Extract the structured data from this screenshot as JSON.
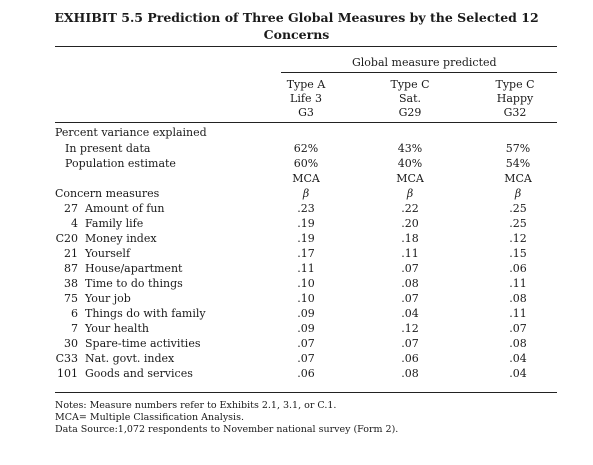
{
  "title_line1": "EXHIBIT 5.5 Prediction of Three Global Measures by the Selected 12",
  "title_line2": "Concerns",
  "group_header": "Global measure predicted",
  "columns": [
    {
      "type": "Type A",
      "name": "Life 3",
      "code": "G3"
    },
    {
      "type": "Type C",
      "name": "Sat.",
      "code": "G29"
    },
    {
      "type": "Type C",
      "name": "Happy",
      "code": "G32"
    }
  ],
  "variance_label": "Percent variance explained",
  "variance_rows": [
    {
      "label": "In present data",
      "values": [
        "62%",
        "43%",
        "57%"
      ]
    },
    {
      "label": "Population estimate",
      "values": [
        "60%",
        "40%",
        "54%"
      ]
    }
  ],
  "method_row": [
    "MCA",
    "MCA",
    "MCA"
  ],
  "concerns_label": "Concern measures",
  "beta_symbol": "β",
  "concern_rows": [
    {
      "num": "27",
      "label": "Amount of fun",
      "values": [
        ".23",
        ".22",
        ".25"
      ]
    },
    {
      "num": "4",
      "label": "Family life",
      "values": [
        ".19",
        ".20",
        ".25"
      ]
    },
    {
      "num": "C20",
      "label": "Money index",
      "values": [
        ".19",
        ".18",
        ".12"
      ]
    },
    {
      "num": "21",
      "label": "Yourself",
      "values": [
        ".17",
        ".11",
        ".15"
      ]
    },
    {
      "num": "87",
      "label": "House/apartment",
      "values": [
        ".11",
        ".07",
        ".06"
      ]
    },
    {
      "num": "38",
      "label": "Time to do things",
      "values": [
        ".10",
        ".08",
        ".11"
      ]
    },
    {
      "num": "75",
      "label": "Your job",
      "values": [
        ".10",
        ".07",
        ".08"
      ]
    },
    {
      "num": "6",
      "label": "Things do with family",
      "values": [
        ".09",
        ".04",
        ".11"
      ]
    },
    {
      "num": "7",
      "label": "Your health",
      "values": [
        ".09",
        ".12",
        ".07"
      ]
    },
    {
      "num": "30",
      "label": "Spare-time activities",
      "values": [
        ".07",
        ".07",
        ".08"
      ]
    },
    {
      "num": "C33",
      "label": "Nat. govt. index",
      "values": [
        ".07",
        ".06",
        ".04"
      ]
    },
    {
      "num": "101",
      "label": "Goods and services",
      "values": [
        ".06",
        ".08",
        ".04"
      ]
    }
  ],
  "notes": [
    "Notes: Measure numbers refer to Exhibits 2.1, 3.1, or C.1.",
    "MCA= Multiple Classification Analysis.",
    "Data Source:1,072 respondents to November national survey (Form 2)."
  ]
}
